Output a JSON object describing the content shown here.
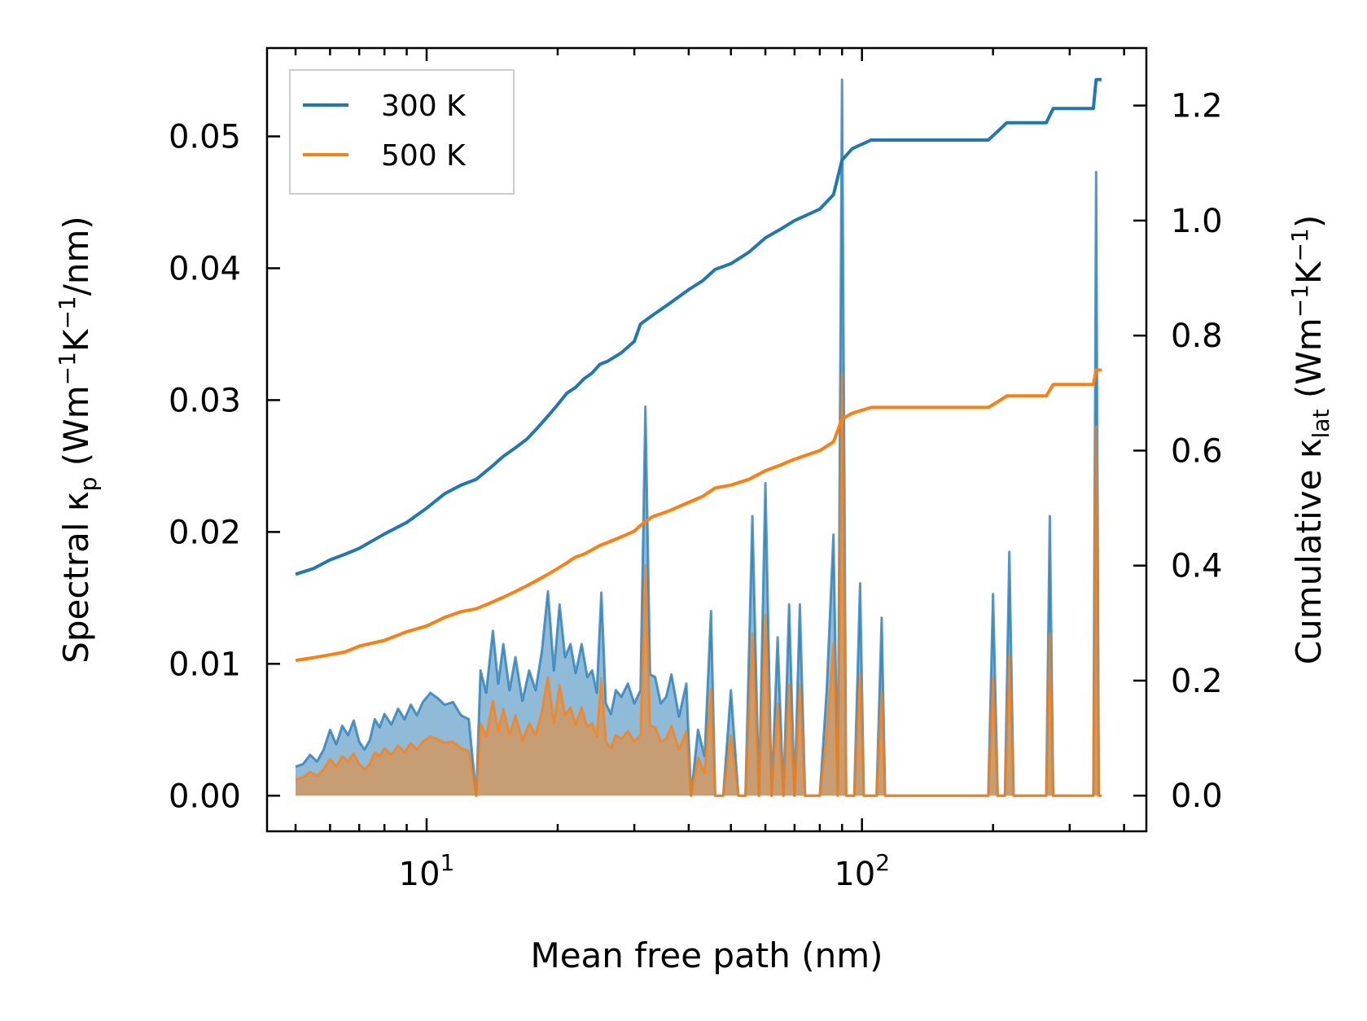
{
  "chart_data": {
    "type": "line",
    "xscale": "log",
    "xlim": [
      4.3,
      450
    ],
    "y_left_lim": [
      -0.0027,
      0.0567
    ],
    "y_right_lim": [
      -0.062,
      1.3
    ],
    "xlabel": "Mean free path (nm)",
    "ylabel_left": {
      "pre": "Spectral κ",
      "sub": "p",
      "unit_pre": " (Wm",
      "exp1": "−1",
      "mid": "K",
      "exp2": "−1",
      "post": "/nm)"
    },
    "ylabel_right": {
      "pre": "Cumulative κ",
      "sub": "lat",
      "unit_pre": " (Wm",
      "exp1": "−1",
      "mid": "K",
      "exp2": "−1",
      "post": ")"
    },
    "x_ticks": [
      {
        "value": 10,
        "base": "10",
        "exp": "1"
      },
      {
        "value": 100,
        "base": "10",
        "exp": "2"
      }
    ],
    "y_left_ticks": [
      {
        "value": 0.0,
        "label": "0.00"
      },
      {
        "value": 0.01,
        "label": "0.01"
      },
      {
        "value": 0.02,
        "label": "0.02"
      },
      {
        "value": 0.03,
        "label": "0.03"
      },
      {
        "value": 0.04,
        "label": "0.04"
      },
      {
        "value": 0.05,
        "label": "0.05"
      }
    ],
    "y_right_ticks": [
      {
        "value": 0.0,
        "label": "0.0"
      },
      {
        "value": 0.2,
        "label": "0.2"
      },
      {
        "value": 0.4,
        "label": "0.4"
      },
      {
        "value": 0.6,
        "label": "0.6"
      },
      {
        "value": 0.8,
        "label": "0.8"
      },
      {
        "value": 1.0,
        "label": "1.0"
      },
      {
        "value": 1.2,
        "label": "1.2"
      }
    ],
    "legend": {
      "location": "upper-left",
      "entries": [
        "300 K",
        "500 K"
      ]
    },
    "colors": {
      "s300": "#1f77b4",
      "s500": "#ff7f0e",
      "fill300": "#1f77b4",
      "fill500": "#ff7f0e"
    },
    "series": [
      {
        "name": "300 K",
        "cumulative": [
          [
            5.0,
            0.385
          ],
          [
            5.5,
            0.395
          ],
          [
            6.0,
            0.41
          ],
          [
            6.5,
            0.42
          ],
          [
            7.0,
            0.43
          ],
          [
            8.0,
            0.455
          ],
          [
            9.0,
            0.475
          ],
          [
            10.0,
            0.5
          ],
          [
            11.0,
            0.525
          ],
          [
            12.0,
            0.54
          ],
          [
            13.0,
            0.55
          ],
          [
            14.0,
            0.57
          ],
          [
            15.0,
            0.59
          ],
          [
            16.0,
            0.605
          ],
          [
            17.0,
            0.62
          ],
          [
            18.0,
            0.64
          ],
          [
            19.0,
            0.66
          ],
          [
            20.0,
            0.68
          ],
          [
            21.0,
            0.7
          ],
          [
            22.0,
            0.71
          ],
          [
            23.0,
            0.725
          ],
          [
            24.0,
            0.735
          ],
          [
            25.0,
            0.75
          ],
          [
            26.0,
            0.755
          ],
          [
            28.0,
            0.77
          ],
          [
            30.0,
            0.79
          ],
          [
            31.0,
            0.82
          ],
          [
            33.0,
            0.835
          ],
          [
            36.0,
            0.855
          ],
          [
            40.0,
            0.88
          ],
          [
            43.0,
            0.895
          ],
          [
            46.0,
            0.915
          ],
          [
            50.0,
            0.925
          ],
          [
            55.0,
            0.945
          ],
          [
            60.0,
            0.97
          ],
          [
            65.0,
            0.985
          ],
          [
            70.0,
            1.0
          ],
          [
            80.0,
            1.02
          ],
          [
            86.0,
            1.045
          ],
          [
            90.0,
            1.105
          ],
          [
            95.0,
            1.125
          ],
          [
            105.0,
            1.14
          ],
          [
            195.0,
            1.14
          ],
          [
            205.0,
            1.155
          ],
          [
            215.0,
            1.17
          ],
          [
            265.0,
            1.17
          ],
          [
            275.0,
            1.195
          ],
          [
            340.0,
            1.195
          ],
          [
            345.0,
            1.245
          ],
          [
            355.0,
            1.245
          ]
        ]
      },
      {
        "name": "500 K",
        "cumulative": [
          [
            5.0,
            0.235
          ],
          [
            5.5,
            0.24
          ],
          [
            6.0,
            0.245
          ],
          [
            6.5,
            0.25
          ],
          [
            7.0,
            0.26
          ],
          [
            8.0,
            0.27
          ],
          [
            9.0,
            0.285
          ],
          [
            10.0,
            0.295
          ],
          [
            11.0,
            0.31
          ],
          [
            12.0,
            0.32
          ],
          [
            13.0,
            0.325
          ],
          [
            14.0,
            0.335
          ],
          [
            15.0,
            0.345
          ],
          [
            16.0,
            0.355
          ],
          [
            17.0,
            0.365
          ],
          [
            18.0,
            0.375
          ],
          [
            19.0,
            0.385
          ],
          [
            20.0,
            0.395
          ],
          [
            21.0,
            0.405
          ],
          [
            22.0,
            0.415
          ],
          [
            23.0,
            0.42
          ],
          [
            25.0,
            0.435
          ],
          [
            26.0,
            0.44
          ],
          [
            28.0,
            0.45
          ],
          [
            30.0,
            0.46
          ],
          [
            31.0,
            0.47
          ],
          [
            33.0,
            0.485
          ],
          [
            36.0,
            0.495
          ],
          [
            40.0,
            0.51
          ],
          [
            43.0,
            0.52
          ],
          [
            46.0,
            0.535
          ],
          [
            50.0,
            0.54
          ],
          [
            55.0,
            0.55
          ],
          [
            60.0,
            0.565
          ],
          [
            65.0,
            0.575
          ],
          [
            70.0,
            0.585
          ],
          [
            80.0,
            0.6
          ],
          [
            86.0,
            0.615
          ],
          [
            90.0,
            0.655
          ],
          [
            95.0,
            0.665
          ],
          [
            105.0,
            0.675
          ],
          [
            195.0,
            0.675
          ],
          [
            205.0,
            0.685
          ],
          [
            215.0,
            0.695
          ],
          [
            265.0,
            0.695
          ],
          [
            275.0,
            0.715
          ],
          [
            340.0,
            0.715
          ],
          [
            345.0,
            0.74
          ],
          [
            355.0,
            0.74
          ]
        ]
      }
    ],
    "spectral_300": [
      [
        5.0,
        0.0022
      ],
      [
        5.2,
        0.0024
      ],
      [
        5.4,
        0.0031
      ],
      [
        5.6,
        0.0026
      ],
      [
        5.8,
        0.0035
      ],
      [
        6.0,
        0.005
      ],
      [
        6.2,
        0.0039
      ],
      [
        6.4,
        0.0053
      ],
      [
        6.6,
        0.0046
      ],
      [
        6.8,
        0.0057
      ],
      [
        7.0,
        0.0041
      ],
      [
        7.2,
        0.0035
      ],
      [
        7.4,
        0.0042
      ],
      [
        7.6,
        0.0058
      ],
      [
        7.8,
        0.0052
      ],
      [
        8.0,
        0.0062
      ],
      [
        8.3,
        0.0054
      ],
      [
        8.6,
        0.0066
      ],
      [
        8.9,
        0.0058
      ],
      [
        9.2,
        0.0069
      ],
      [
        9.5,
        0.0061
      ],
      [
        9.8,
        0.0071
      ],
      [
        10.2,
        0.0078
      ],
      [
        10.6,
        0.0074
      ],
      [
        11.0,
        0.0069
      ],
      [
        11.5,
        0.0071
      ],
      [
        12.0,
        0.0061
      ],
      [
        12.5,
        0.0058
      ],
      [
        13.0,
        0.0
      ],
      [
        13.3,
        0.0095
      ],
      [
        13.7,
        0.0078
      ],
      [
        14.2,
        0.0125
      ],
      [
        14.6,
        0.0085
      ],
      [
        15.0,
        0.0115
      ],
      [
        15.5,
        0.008
      ],
      [
        16.0,
        0.0105
      ],
      [
        16.6,
        0.0072
      ],
      [
        17.2,
        0.0095
      ],
      [
        17.8,
        0.008
      ],
      [
        18.4,
        0.011
      ],
      [
        19.0,
        0.0155
      ],
      [
        19.6,
        0.0095
      ],
      [
        20.2,
        0.0145
      ],
      [
        20.8,
        0.0105
      ],
      [
        21.4,
        0.0115
      ],
      [
        22.0,
        0.0093
      ],
      [
        22.7,
        0.0115
      ],
      [
        23.4,
        0.009
      ],
      [
        24.0,
        0.0095
      ],
      [
        24.6,
        0.0078
      ],
      [
        25.2,
        0.0154
      ],
      [
        25.8,
        0.007
      ],
      [
        26.5,
        0.0062
      ],
      [
        27.2,
        0.008
      ],
      [
        28.0,
        0.0075
      ],
      [
        29.0,
        0.0085
      ],
      [
        30.0,
        0.007
      ],
      [
        31.0,
        0.008
      ],
      [
        31.8,
        0.0295
      ],
      [
        32.6,
        0.0092
      ],
      [
        33.5,
        0.009
      ],
      [
        34.5,
        0.007
      ],
      [
        35.5,
        0.0075
      ],
      [
        36.5,
        0.0092
      ],
      [
        38.0,
        0.006
      ],
      [
        39.5,
        0.0085
      ],
      [
        40.5,
        0.0
      ],
      [
        42.0,
        0.005
      ],
      [
        43.5,
        0.003
      ],
      [
        45.0,
        0.014
      ],
      [
        46.0,
        0.0
      ],
      [
        48.0,
        0.0
      ],
      [
        50.0,
        0.008
      ],
      [
        52.0,
        0.0
      ],
      [
        54.0,
        0.0
      ],
      [
        56.0,
        0.0212
      ],
      [
        58.0,
        0.0
      ],
      [
        60.0,
        0.0237
      ],
      [
        62.0,
        0.0
      ],
      [
        64.0,
        0.012
      ],
      [
        66.0,
        0.0
      ],
      [
        68.0,
        0.0145
      ],
      [
        70.0,
        0.0
      ],
      [
        72.0,
        0.0145
      ],
      [
        74.0,
        0.0
      ],
      [
        80.0,
        0.0
      ],
      [
        83.0,
        0.008
      ],
      [
        86.0,
        0.0198
      ],
      [
        88.0,
        0.0
      ],
      [
        90.0,
        0.0543
      ],
      [
        92.0,
        0.0
      ],
      [
        96.0,
        0.0
      ],
      [
        99.0,
        0.0161
      ],
      [
        101.0,
        0.0
      ],
      [
        108.0,
        0.0
      ],
      [
        111.0,
        0.0135
      ],
      [
        113.0,
        0.0
      ],
      [
        195.0,
        0.0
      ],
      [
        200.0,
        0.0153
      ],
      [
        205.0,
        0.0
      ],
      [
        213.0,
        0.0
      ],
      [
        218.0,
        0.0185
      ],
      [
        223.0,
        0.0
      ],
      [
        265.0,
        0.0
      ],
      [
        270.0,
        0.0212
      ],
      [
        275.0,
        0.0
      ],
      [
        340.0,
        0.0
      ],
      [
        345.0,
        0.0473
      ],
      [
        350.0,
        0.0
      ],
      [
        355.0,
        0.0
      ]
    ],
    "spectral_500": [
      [
        5.0,
        0.0012
      ],
      [
        5.2,
        0.0014
      ],
      [
        5.4,
        0.0018
      ],
      [
        5.6,
        0.0015
      ],
      [
        5.8,
        0.002
      ],
      [
        6.0,
        0.0028
      ],
      [
        6.2,
        0.0022
      ],
      [
        6.4,
        0.003
      ],
      [
        6.6,
        0.0026
      ],
      [
        6.8,
        0.0032
      ],
      [
        7.0,
        0.0024
      ],
      [
        7.2,
        0.002
      ],
      [
        7.4,
        0.0024
      ],
      [
        7.6,
        0.0033
      ],
      [
        7.8,
        0.003
      ],
      [
        8.0,
        0.0036
      ],
      [
        8.3,
        0.0031
      ],
      [
        8.6,
        0.0038
      ],
      [
        8.9,
        0.0033
      ],
      [
        9.2,
        0.004
      ],
      [
        9.5,
        0.0035
      ],
      [
        9.8,
        0.0041
      ],
      [
        10.2,
        0.0045
      ],
      [
        10.6,
        0.0043
      ],
      [
        11.0,
        0.004
      ],
      [
        11.5,
        0.0041
      ],
      [
        12.0,
        0.0036
      ],
      [
        12.5,
        0.0034
      ],
      [
        13.0,
        0.0
      ],
      [
        13.3,
        0.0055
      ],
      [
        13.7,
        0.0045
      ],
      [
        14.2,
        0.0072
      ],
      [
        14.6,
        0.0049
      ],
      [
        15.0,
        0.0066
      ],
      [
        15.5,
        0.0046
      ],
      [
        16.0,
        0.0061
      ],
      [
        16.6,
        0.0042
      ],
      [
        17.2,
        0.0055
      ],
      [
        17.8,
        0.0046
      ],
      [
        18.4,
        0.0064
      ],
      [
        19.0,
        0.009
      ],
      [
        19.6,
        0.0055
      ],
      [
        20.2,
        0.0084
      ],
      [
        20.8,
        0.0061
      ],
      [
        21.4,
        0.0067
      ],
      [
        22.0,
        0.0054
      ],
      [
        22.7,
        0.0067
      ],
      [
        23.4,
        0.0052
      ],
      [
        24.0,
        0.0055
      ],
      [
        24.6,
        0.0045
      ],
      [
        25.2,
        0.0089
      ],
      [
        25.8,
        0.0041
      ],
      [
        26.5,
        0.0036
      ],
      [
        27.2,
        0.0046
      ],
      [
        28.0,
        0.0043
      ],
      [
        29.0,
        0.0049
      ],
      [
        30.0,
        0.0041
      ],
      [
        31.0,
        0.0046
      ],
      [
        31.8,
        0.0175
      ],
      [
        32.6,
        0.0053
      ],
      [
        33.5,
        0.0052
      ],
      [
        34.5,
        0.0041
      ],
      [
        35.5,
        0.0043
      ],
      [
        36.5,
        0.0053
      ],
      [
        38.0,
        0.0035
      ],
      [
        39.5,
        0.0049
      ],
      [
        40.5,
        0.0
      ],
      [
        42.0,
        0.0029
      ],
      [
        43.5,
        0.0017
      ],
      [
        45.0,
        0.0081
      ],
      [
        46.0,
        0.0
      ],
      [
        48.0,
        0.0
      ],
      [
        50.0,
        0.0046
      ],
      [
        52.0,
        0.0
      ],
      [
        54.0,
        0.0
      ],
      [
        56.0,
        0.0123
      ],
      [
        58.0,
        0.0
      ],
      [
        60.0,
        0.0137
      ],
      [
        62.0,
        0.0
      ],
      [
        64.0,
        0.007
      ],
      [
        66.0,
        0.0
      ],
      [
        68.0,
        0.0084
      ],
      [
        70.0,
        0.0
      ],
      [
        72.0,
        0.0084
      ],
      [
        74.0,
        0.0
      ],
      [
        80.0,
        0.0
      ],
      [
        83.0,
        0.0046
      ],
      [
        86.0,
        0.0115
      ],
      [
        88.0,
        0.0
      ],
      [
        90.0,
        0.032
      ],
      [
        92.0,
        0.0
      ],
      [
        96.0,
        0.0
      ],
      [
        99.0,
        0.0093
      ],
      [
        101.0,
        0.0
      ],
      [
        108.0,
        0.0
      ],
      [
        111.0,
        0.0078
      ],
      [
        113.0,
        0.0
      ],
      [
        195.0,
        0.0
      ],
      [
        200.0,
        0.0089
      ],
      [
        205.0,
        0.0
      ],
      [
        213.0,
        0.0
      ],
      [
        218.0,
        0.0107
      ],
      [
        223.0,
        0.0
      ],
      [
        265.0,
        0.0
      ],
      [
        270.0,
        0.0123
      ],
      [
        275.0,
        0.0
      ],
      [
        340.0,
        0.0
      ],
      [
        345.0,
        0.028
      ],
      [
        350.0,
        0.0
      ],
      [
        355.0,
        0.0
      ]
    ]
  }
}
